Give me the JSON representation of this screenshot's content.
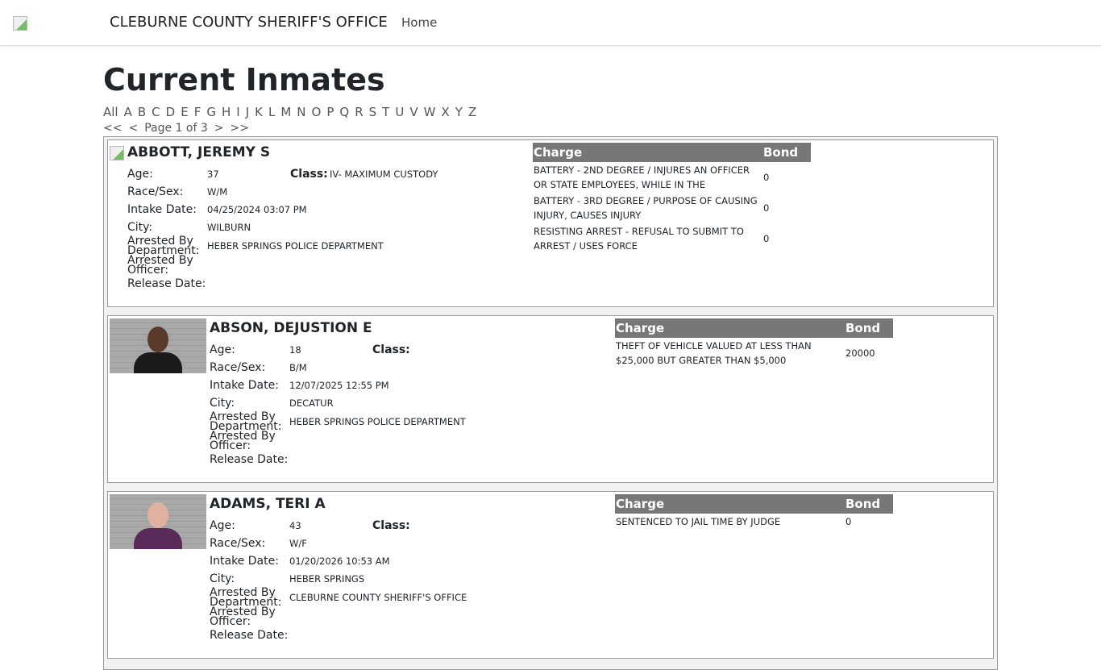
{
  "nav": {
    "brand": "CLEBURNE COUNTY SHERIFF'S OFFICE",
    "home": "Home"
  },
  "page": {
    "title": "Current Inmates",
    "letters": [
      "All",
      "A",
      "B",
      "C",
      "D",
      "E",
      "F",
      "G",
      "H",
      "I",
      "J",
      "K",
      "L",
      "M",
      "N",
      "O",
      "P",
      "Q",
      "R",
      "S",
      "T",
      "U",
      "V",
      "W",
      "X",
      "Y",
      "Z"
    ],
    "pager": {
      "first": "<<",
      "prev": "<",
      "label": "Page 1 of 3",
      "next": ">",
      "last": ">>"
    }
  },
  "labels": {
    "age": "Age:",
    "class": "Class:",
    "race": "Race/Sex:",
    "intake": "Intake Date:",
    "city": "City:",
    "dept": "Arrested By Department:",
    "officer": "Arrested By Officer:",
    "release": "Release Date:",
    "charge": "Charge",
    "bond": "Bond"
  },
  "inmates": [
    {
      "name": "ABBOTT, JEREMY S",
      "age": "37",
      "class": "IV- MAXIMUM CUSTODY",
      "race": "W/M",
      "intake": "04/25/2024 03:07 PM",
      "city": "WILBURN",
      "dept": "HEBER SPRINGS POLICE DEPARTMENT",
      "officer": "",
      "release": "",
      "charges": [
        {
          "charge": "BATTERY - 2ND DEGREE / INJURES AN OFFICER OR STATE EMPLOYEES, WHILE IN THE",
          "bond": "0"
        },
        {
          "charge": "BATTERY - 3RD DEGREE / PURPOSE OF CAUSING INJURY, CAUSES INJURY",
          "bond": "0"
        },
        {
          "charge": "RESISTING ARREST - REFUSAL TO SUBMIT TO ARREST / USES FORCE",
          "bond": "0"
        }
      ]
    },
    {
      "name": "ABSON, DEJUSTION E",
      "age": "18",
      "class": "",
      "race": "B/M",
      "intake": "12/07/2025 12:55 PM",
      "city": "DECATUR",
      "dept": "HEBER SPRINGS POLICE DEPARTMENT",
      "officer": "",
      "release": "",
      "charges": [
        {
          "charge": "THEFT OF VEHICLE VALUED AT LESS THAN $25,000 BUT GREATER THAN $5,000",
          "bond": "20000"
        }
      ]
    },
    {
      "name": "ADAMS, TERI A",
      "age": "43",
      "class": "",
      "race": "W/F",
      "intake": "01/20/2026 10:53 AM",
      "city": "HEBER SPRINGS",
      "dept": "CLEBURNE COUNTY SHERIFF'S OFFICE",
      "officer": "",
      "release": "",
      "charges": [
        {
          "charge": "SENTENCED TO JAIL TIME BY JUDGE",
          "bond": "0"
        }
      ]
    }
  ]
}
